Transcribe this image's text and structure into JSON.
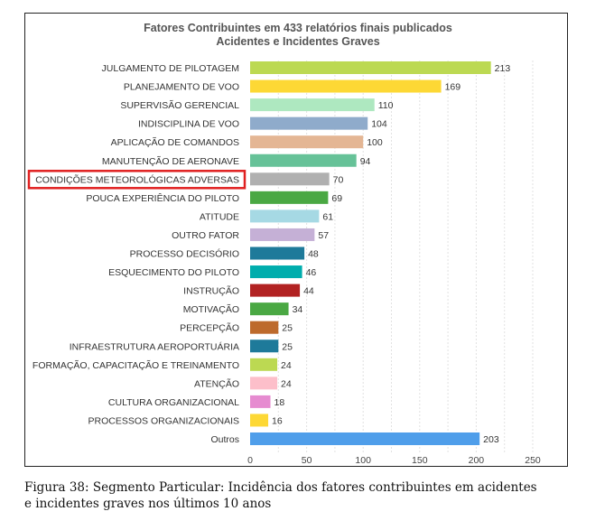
{
  "chart_data": {
    "type": "bar",
    "orientation": "horizontal",
    "title": [
      "Fatores Contribuintes em 433 relatórios finais publicados",
      "Acidentes e Incidentes Graves"
    ],
    "categories": [
      "JULGAMENTO DE PILOTAGEM",
      "PLANEJAMENTO DE VOO",
      "SUPERVISÃO GERENCIAL",
      "INDISCIPLINA DE VOO",
      "APLICAÇÃO DE COMANDOS",
      "MANUTENÇÃO DE AERONAVE",
      "CONDIÇÕES METEOROLÓGICAS ADVERSAS",
      "POUCA EXPERIÊNCIA DO PILOTO",
      "ATITUDE",
      "OUTRO FATOR",
      "PROCESSO DECISÓRIO",
      "ESQUECIMENTO DO PILOTO",
      "INSTRUÇÃO",
      "MOTIVAÇÃO",
      "PERCEPÇÃO",
      "INFRAESTRUTURA AEROPORTUÁRIA",
      "FORMAÇÃO, CAPACITAÇÃO  E  TREINAMENTO",
      "ATENÇÃO",
      "CULTURA ORGANIZACIONAL",
      "PROCESSOS ORGANIZACIONAIS",
      "Outros"
    ],
    "values": [
      213,
      169,
      110,
      104,
      100,
      94,
      70,
      69,
      61,
      57,
      48,
      46,
      44,
      34,
      25,
      25,
      24,
      24,
      18,
      16,
      203
    ],
    "colors": [
      "#bcd952",
      "#fdd835",
      "#aee8c0",
      "#8fabcb",
      "#e4b694",
      "#66c298",
      "#b0b0b0",
      "#4aa843",
      "#a6d9e4",
      "#c5b0d6",
      "#1e7a9a",
      "#00adad",
      "#b22222",
      "#4aa843",
      "#bd6a2c",
      "#1e7a9a",
      "#bcd952",
      "#fdbfca",
      "#e68bd0",
      "#fdd835",
      "#4f9eea"
    ],
    "xlim": [
      0,
      250
    ],
    "xticks": [
      0,
      50,
      100,
      150,
      200,
      250
    ],
    "grid": "vertical dashed",
    "highlighted_category": "CONDIÇÕES METEOROLÓGICAS ADVERSAS",
    "highlight_color": "#e02020"
  },
  "caption": {
    "line1": "Figura 38: Segmento Particular: Incidência dos fatores contribuintes em acidentes",
    "line2": "e incidentes graves nos últimos 10 anos"
  }
}
